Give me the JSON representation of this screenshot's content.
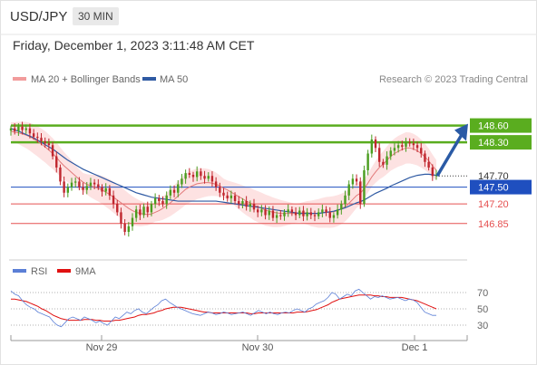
{
  "header": {
    "symbol": "USD/JPY",
    "timeframe": "30 MIN"
  },
  "datetime": "Friday, December 1, 2023 3:11:48 AM CET",
  "legend": {
    "ma20_bb": "MA 20 + Bollinger Bands",
    "ma50": "MA 50",
    "copyright": "Research © 2023 Trading Central",
    "rsi": "RSI",
    "ma9": "9MA"
  },
  "colors": {
    "up": "#4a9d1f",
    "down": "#c0262e",
    "bb_fill": "#fde2e2",
    "ma20": "#e27a7a",
    "ma50": "#2f5aa3",
    "resistance": "#5aad1f",
    "support": "#e55050",
    "current": "#3a3a3a",
    "pivot": "#1f4fbf",
    "arrow": "#2a5aa5",
    "rsi": "#5b7fd6",
    "ma9": "#e01010"
  },
  "chart_data": [
    {
      "type": "candlestick",
      "x_labels": [
        "Nov 29",
        "Nov 30",
        "Dec 1"
      ],
      "y_range": [
        146.28,
        148.82
      ],
      "levels": [
        {
          "label": "148.60",
          "value": 148.6,
          "kind": "resistance"
        },
        {
          "label": "148.30",
          "value": 148.3,
          "kind": "resistance"
        },
        {
          "label": "147.70",
          "value": 147.7,
          "kind": "current"
        },
        {
          "label": "147.50",
          "value": 147.5,
          "kind": "pivot"
        },
        {
          "label": "147.20",
          "value": 147.2,
          "kind": "support"
        },
        {
          "label": "146.85",
          "value": 146.85,
          "kind": "support"
        }
      ],
      "target_arrow": {
        "from": 147.7,
        "to": 148.6
      },
      "closes": [
        148.55,
        148.5,
        148.58,
        148.52,
        148.55,
        148.46,
        148.4,
        148.38,
        148.32,
        148.28,
        148.25,
        148.05,
        147.85,
        147.6,
        147.4,
        147.5,
        147.58,
        147.6,
        147.5,
        147.45,
        147.52,
        147.58,
        147.55,
        147.5,
        147.42,
        147.48,
        147.35,
        147.2,
        147.05,
        146.85,
        146.7,
        146.8,
        146.95,
        147.1,
        147.0,
        147.15,
        147.05,
        147.2,
        147.3,
        147.25,
        147.2,
        147.35,
        147.45,
        147.4,
        147.55,
        147.65,
        147.75,
        147.72,
        147.68,
        147.78,
        147.7,
        147.65,
        147.7,
        147.6,
        147.5,
        147.4,
        147.35,
        147.3,
        147.35,
        147.25,
        147.2,
        147.25,
        147.15,
        147.2,
        147.1,
        147.05,
        147.1,
        147.0,
        147.08,
        146.95,
        147.0,
        146.98,
        147.05,
        147.1,
        147.05,
        147.0,
        147.08,
        146.98,
        147.05,
        147.0,
        146.98,
        147.05,
        147.1,
        147.05,
        146.95,
        147.0,
        147.1,
        147.2,
        147.35,
        147.55,
        147.65,
        147.6,
        147.2,
        147.8,
        148.1,
        148.35,
        148.2,
        147.95,
        147.9,
        148.05,
        148.15,
        148.2,
        148.25,
        148.22,
        148.3,
        148.28,
        148.25,
        148.2,
        148.1,
        147.95,
        147.85,
        147.7,
        147.72
      ],
      "ma20": [
        148.5,
        148.48,
        148.47,
        148.45,
        148.43,
        148.4,
        148.36,
        148.32,
        148.27,
        148.22,
        148.16,
        148.1,
        148.03,
        147.95,
        147.88,
        147.82,
        147.76,
        147.7,
        147.64,
        147.59,
        147.55,
        147.52,
        147.5,
        147.48,
        147.45,
        147.41,
        147.37,
        147.32,
        147.27,
        147.22,
        147.17,
        147.12,
        147.08,
        147.05,
        147.03,
        147.02,
        147.01,
        147.02,
        147.05,
        147.08,
        147.12,
        147.17,
        147.22,
        147.28,
        147.34,
        147.4,
        147.46,
        147.5,
        147.53,
        147.56,
        147.57,
        147.58,
        147.58,
        147.57,
        147.55,
        147.52,
        147.48,
        147.45,
        147.41,
        147.37,
        147.33,
        147.29,
        147.25,
        147.22,
        147.18,
        147.15,
        147.12,
        147.09,
        147.07,
        147.05,
        147.04,
        147.03,
        147.03,
        147.03,
        147.03,
        147.03,
        147.04,
        147.04,
        147.04,
        147.03,
        147.03,
        147.03,
        147.04,
        147.05,
        147.05,
        147.06,
        147.08,
        147.11,
        147.15,
        147.21,
        147.28,
        147.35,
        147.39,
        147.47,
        147.57,
        147.68,
        147.77,
        147.85,
        147.91,
        147.98,
        148.05,
        148.1,
        148.14,
        148.17,
        148.2,
        148.2,
        148.18,
        148.15,
        148.1,
        148.04,
        147.97,
        147.88,
        147.8
      ],
      "ma50": [
        148.55,
        148.52,
        148.5,
        148.47,
        148.44,
        148.41,
        148.38,
        148.34,
        148.3,
        148.26,
        148.22,
        148.18,
        148.13,
        148.08,
        148.03,
        147.98,
        147.94,
        147.9,
        147.86,
        147.82,
        147.79,
        147.76,
        147.73,
        147.7,
        147.67,
        147.64,
        147.61,
        147.58,
        147.55,
        147.52,
        147.49,
        147.46,
        147.43,
        147.4,
        147.38,
        147.36,
        147.34,
        147.32,
        147.31,
        147.3,
        147.29,
        147.28,
        147.27,
        147.26,
        147.25,
        147.25,
        147.25,
        147.25,
        147.25,
        147.25,
        147.25,
        147.25,
        147.25,
        147.25,
        147.25,
        147.24,
        147.23,
        147.22,
        147.21,
        147.2,
        147.19,
        147.18,
        147.17,
        147.16,
        147.15,
        147.14,
        147.13,
        147.12,
        147.11,
        147.1,
        147.09,
        147.08,
        147.07,
        147.06,
        147.05,
        147.04,
        147.03,
        147.03,
        147.03,
        147.03,
        147.03,
        147.03,
        147.04,
        147.05,
        147.06,
        147.07,
        147.09,
        147.11,
        147.13,
        147.16,
        147.19,
        147.22,
        147.24,
        147.27,
        147.31,
        147.35,
        147.39,
        147.42,
        147.45,
        147.48,
        147.52,
        147.55,
        147.58,
        147.61,
        147.64,
        147.67,
        147.69,
        147.71,
        147.72,
        147.73,
        147.73,
        147.72,
        147.71
      ]
    },
    {
      "type": "line",
      "title": "RSI",
      "y_ticks": [
        30,
        50,
        70
      ],
      "y_range": [
        20,
        80
      ],
      "rsi": [
        72,
        68,
        66,
        60,
        55,
        52,
        50,
        46,
        44,
        42,
        40,
        34,
        30,
        28,
        33,
        38,
        40,
        38,
        36,
        40,
        38,
        36,
        33,
        35,
        32,
        30,
        35,
        40,
        38,
        42,
        46,
        44,
        48,
        50,
        46,
        44,
        48,
        52,
        55,
        60,
        62,
        58,
        55,
        52,
        50,
        48,
        46,
        44,
        43,
        42,
        44,
        46,
        45,
        43,
        44,
        46,
        45,
        43,
        44,
        45,
        46,
        44,
        42,
        45,
        48,
        46,
        44,
        46,
        44,
        43,
        45,
        46,
        45,
        48,
        50,
        48,
        46,
        50,
        52,
        56,
        58,
        60,
        64,
        70,
        68,
        62,
        65,
        68,
        66,
        72,
        74,
        70,
        66,
        62,
        65,
        64,
        66,
        64,
        62,
        63,
        64,
        62,
        60,
        62,
        61,
        58,
        52,
        46,
        44,
        42,
        42
      ],
      "ma9": [
        62,
        62,
        61,
        60,
        59,
        57,
        55,
        53,
        50,
        48,
        45,
        42,
        40,
        38,
        37,
        36,
        36,
        36,
        36,
        37,
        37,
        37,
        36,
        36,
        35,
        35,
        35,
        36,
        36,
        37,
        38,
        39,
        40,
        42,
        43,
        43,
        44,
        45,
        47,
        48,
        50,
        51,
        52,
        52,
        52,
        51,
        50,
        49,
        48,
        47,
        46,
        46,
        45,
        45,
        45,
        45,
        45,
        45,
        45,
        45,
        45,
        45,
        44,
        44,
        45,
        45,
        45,
        45,
        45,
        45,
        45,
        45,
        45,
        45,
        46,
        46,
        46,
        47,
        48,
        49,
        51,
        53,
        55,
        58,
        60,
        62,
        63,
        64,
        65,
        66,
        67,
        67,
        67,
        67,
        66,
        66,
        65,
        65,
        64,
        64,
        64,
        64,
        63,
        62,
        61,
        60,
        58,
        56,
        54,
        52,
        50
      ]
    }
  ]
}
